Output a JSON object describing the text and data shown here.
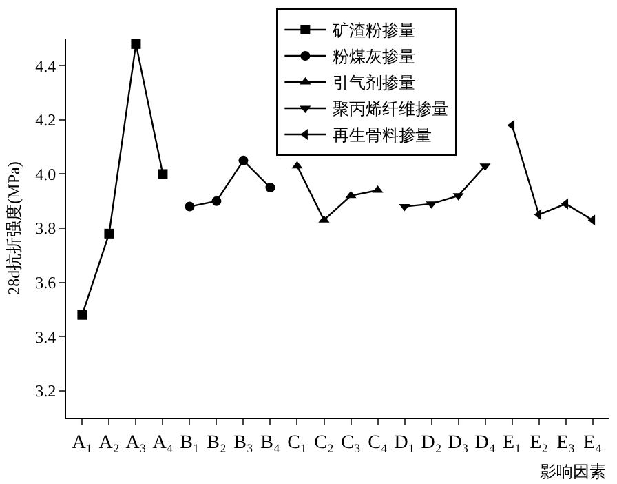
{
  "chart_data": {
    "type": "line",
    "xlabel": "影响因素",
    "ylabel": "28d抗折强度(MPa)",
    "categories": [
      "A₁",
      "A₂",
      "A₃",
      "A₄",
      "B₁",
      "B₂",
      "B₃",
      "B₄",
      "C₁",
      "C₂",
      "C₃",
      "C₄",
      "D₁",
      "D₂",
      "D₃",
      "D₄",
      "E₁",
      "E₂",
      "E₃",
      "E₄"
    ],
    "series": [
      {
        "name": "矿渣粉掺量",
        "color": "#000000",
        "marker": "square",
        "x": [
          "A₁",
          "A₂",
          "A₃",
          "A₄"
        ],
        "values": [
          3.48,
          3.78,
          4.48,
          4.0
        ]
      },
      {
        "name": "粉煤灰掺量",
        "color": "#000000",
        "marker": "circle",
        "x": [
          "B₁",
          "B₂",
          "B₃",
          "B₄"
        ],
        "values": [
          3.88,
          3.9,
          4.05,
          3.95
        ]
      },
      {
        "name": "引气剂掺量",
        "color": "#000000",
        "marker": "triangle",
        "x": [
          "C₁",
          "C₂",
          "C₃",
          "C₄"
        ],
        "values": [
          4.03,
          3.83,
          3.92,
          3.94
        ]
      },
      {
        "name": "聚丙烯纤维掺量",
        "color": "#000000",
        "marker": "triangle-down",
        "x": [
          "D₁",
          "D₂",
          "D₃",
          "D₄"
        ],
        "values": [
          3.88,
          3.89,
          3.92,
          4.03
        ]
      },
      {
        "name": "再生骨料掺量",
        "color": "#000000",
        "marker": "triangle-left",
        "x": [
          "E₁",
          "E₂",
          "E₃",
          "E₄"
        ],
        "values": [
          4.18,
          3.85,
          3.89,
          3.83
        ]
      }
    ],
    "ylim": [
      3.1,
      4.5
    ],
    "yticks": [
      {
        "value": 3.2,
        "label": "3.2"
      },
      {
        "value": 3.4,
        "label": "3.4"
      },
      {
        "value": 3.6,
        "label": "3.6"
      },
      {
        "value": 3.8,
        "label": "3.8"
      },
      {
        "value": 4.0,
        "label": "4.0"
      },
      {
        "value": 4.2,
        "label": "4.2"
      },
      {
        "value": 4.4,
        "label": "4.4"
      }
    ],
    "grid": false,
    "legend": "top right",
    "line_style": "solid"
  }
}
